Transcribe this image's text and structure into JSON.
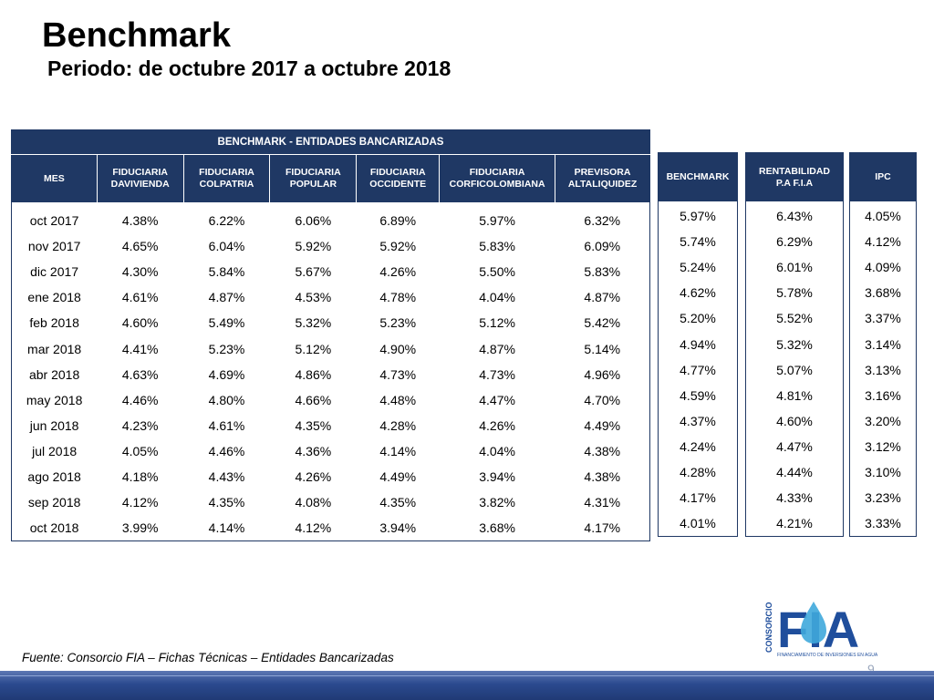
{
  "title": "Benchmark",
  "subtitle": "Periodo: de octubre 2017 a octubre 2018",
  "main_table": {
    "group_header": "BENCHMARK - ENTIDADES BANCARIZADAS",
    "columns": [
      [
        "MES"
      ],
      [
        "FIDUCIARIA",
        "DAVIVIENDA"
      ],
      [
        "FIDUCIARIA",
        "COLPATRIA"
      ],
      [
        "FIDUCIARIA",
        "POPULAR"
      ],
      [
        "FIDUCIARIA",
        "OCCIDENTE"
      ],
      [
        "FIDUCIARIA",
        "CORFICOLOMBIANA"
      ],
      [
        "PREVISORA",
        "ALTALIQUIDEZ"
      ]
    ],
    "rows": [
      [
        "oct 2017",
        "4.38%",
        "6.22%",
        "6.06%",
        "6.89%",
        "5.97%",
        "6.32%"
      ],
      [
        "nov 2017",
        "4.65%",
        "6.04%",
        "5.92%",
        "5.92%",
        "5.83%",
        "6.09%"
      ],
      [
        "dic 2017",
        "4.30%",
        "5.84%",
        "5.67%",
        "4.26%",
        "5.50%",
        "5.83%"
      ],
      [
        "ene 2018",
        "4.61%",
        "4.87%",
        "4.53%",
        "4.78%",
        "4.04%",
        "4.87%"
      ],
      [
        "feb 2018",
        "4.60%",
        "5.49%",
        "5.32%",
        "5.23%",
        "5.12%",
        "5.42%"
      ],
      [
        "mar 2018",
        "4.41%",
        "5.23%",
        "5.12%",
        "4.90%",
        "4.87%",
        "5.14%"
      ],
      [
        "abr 2018",
        "4.63%",
        "4.69%",
        "4.86%",
        "4.73%",
        "4.73%",
        "4.96%"
      ],
      [
        "may 2018",
        "4.46%",
        "4.80%",
        "4.66%",
        "4.48%",
        "4.47%",
        "4.70%"
      ],
      [
        "jun 2018",
        "4.23%",
        "4.61%",
        "4.35%",
        "4.28%",
        "4.26%",
        "4.49%"
      ],
      [
        "jul 2018",
        "4.05%",
        "4.46%",
        "4.36%",
        "4.14%",
        "4.04%",
        "4.38%"
      ],
      [
        "ago 2018",
        "4.18%",
        "4.43%",
        "4.26%",
        "4.49%",
        "3.94%",
        "4.38%"
      ],
      [
        "sep 2018",
        "4.12%",
        "4.35%",
        "4.08%",
        "4.35%",
        "3.82%",
        "4.31%"
      ],
      [
        "oct 2018",
        "3.99%",
        "4.14%",
        "4.12%",
        "3.94%",
        "3.68%",
        "4.17%"
      ]
    ]
  },
  "benchmark_table": {
    "header": [
      "BENCHMARK"
    ],
    "values": [
      "5.97%",
      "5.74%",
      "5.24%",
      "4.62%",
      "5.20%",
      "4.94%",
      "4.77%",
      "4.59%",
      "4.37%",
      "4.24%",
      "4.28%",
      "4.17%",
      "4.01%"
    ]
  },
  "rentabilidad_table": {
    "header": [
      "RENTABILIDAD",
      "P.A F.I.A"
    ],
    "values": [
      "6.43%",
      "6.29%",
      "6.01%",
      "5.78%",
      "5.52%",
      "5.32%",
      "5.07%",
      "4.81%",
      "4.60%",
      "4.47%",
      "4.44%",
      "4.33%",
      "4.21%"
    ]
  },
  "ipc_table": {
    "header": [
      "IPC"
    ],
    "values": [
      "4.05%",
      "4.12%",
      "4.09%",
      "3.68%",
      "3.37%",
      "3.14%",
      "3.13%",
      "3.16%",
      "3.20%",
      "3.12%",
      "3.10%",
      "3.23%",
      "3.33%"
    ]
  },
  "source": "Fuente: Consorcio FIA – Fichas Técnicas – Entidades Bancarizadas",
  "logo": {
    "vertical_text": "CONSORCIO",
    "wordmark": "FIA",
    "tagline": "FINANCIAMIENTO DE INVERSIONES EN AGUA",
    "colors": {
      "blue": "#1f4e9c",
      "water": "#3fa9dc"
    }
  },
  "page_number": "9",
  "colors": {
    "header_bg": "#1f3864",
    "footer": "#2b4a8f"
  }
}
